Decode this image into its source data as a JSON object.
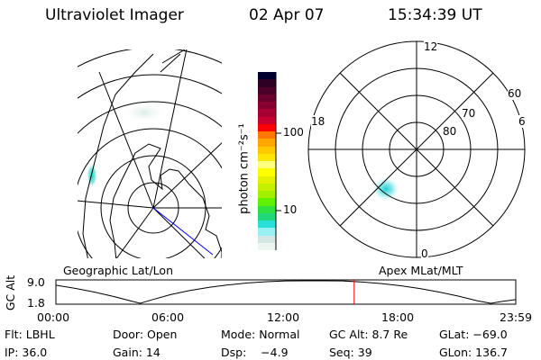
{
  "header": {
    "instrument": "Ultraviolet Imager",
    "date": "02 Apr 07",
    "time": "15:34:39 UT"
  },
  "colorbar": {
    "unit_label": "photon cm⁻²s⁻¹",
    "tick_labels": [
      "100",
      "10"
    ],
    "colors": [
      "#00002e",
      "#2e0024",
      "#4c0028",
      "#6a002c",
      "#880030",
      "#a80032",
      "#c80030",
      "#ff0000",
      "#ff7800",
      "#ffa800",
      "#ffc800",
      "#ffe400",
      "#ffff80",
      "#ffff00",
      "#e4f000",
      "#c4f000",
      "#a0f000",
      "#60f000",
      "#30e040",
      "#20d878",
      "#28e0d8",
      "#98f0f4",
      "#d4e6e4",
      "#ecf6f0"
    ]
  },
  "left_map": {
    "label": "Geographic Lat/Lon"
  },
  "right_map": {
    "label": "Apex MLat/MLT",
    "mlt_labels": {
      "top": "12",
      "left": "18",
      "right": "6",
      "bottom": "0"
    },
    "lat_labels": [
      "60",
      "70",
      "80"
    ]
  },
  "altitude_plot": {
    "ylabel": "GC Alt",
    "y_ticks": [
      "9.0",
      "1.8"
    ],
    "x_ticks": [
      "00:00",
      "06:00",
      "12:00",
      "18:00",
      "23:59"
    ],
    "current_time_marker": "15:34",
    "marker_color": "#ff0000",
    "series_hours": [
      0,
      1,
      2,
      3,
      4,
      4.4,
      5,
      6,
      7,
      8,
      9,
      10,
      11,
      12,
      13,
      14,
      15,
      16,
      17,
      18,
      19,
      20,
      21,
      22,
      22.7,
      23.3,
      24
    ],
    "series_alt_re": [
      7.6,
      6.6,
      5.4,
      4.0,
      2.4,
      1.8,
      2.9,
      4.6,
      5.9,
      6.9,
      7.7,
      8.3,
      8.7,
      8.95,
      9.0,
      9.0,
      8.95,
      8.6,
      8.1,
      7.4,
      6.5,
      5.4,
      4.1,
      2.6,
      1.8,
      2.4,
      3.0
    ]
  },
  "status": {
    "filter": "Flt: LBHL",
    "door": "Door: Open",
    "mode": "Mode: Normal",
    "gc_alt": "GC Alt: 8.7 Re",
    "glat": "GLat: −69.0",
    "ip": "IP: 36.0",
    "gain": "Gain: 14",
    "dsp": "Dsp:    −4.9",
    "seq": "Seq: 39",
    "glon": "GLon: 136.7"
  }
}
